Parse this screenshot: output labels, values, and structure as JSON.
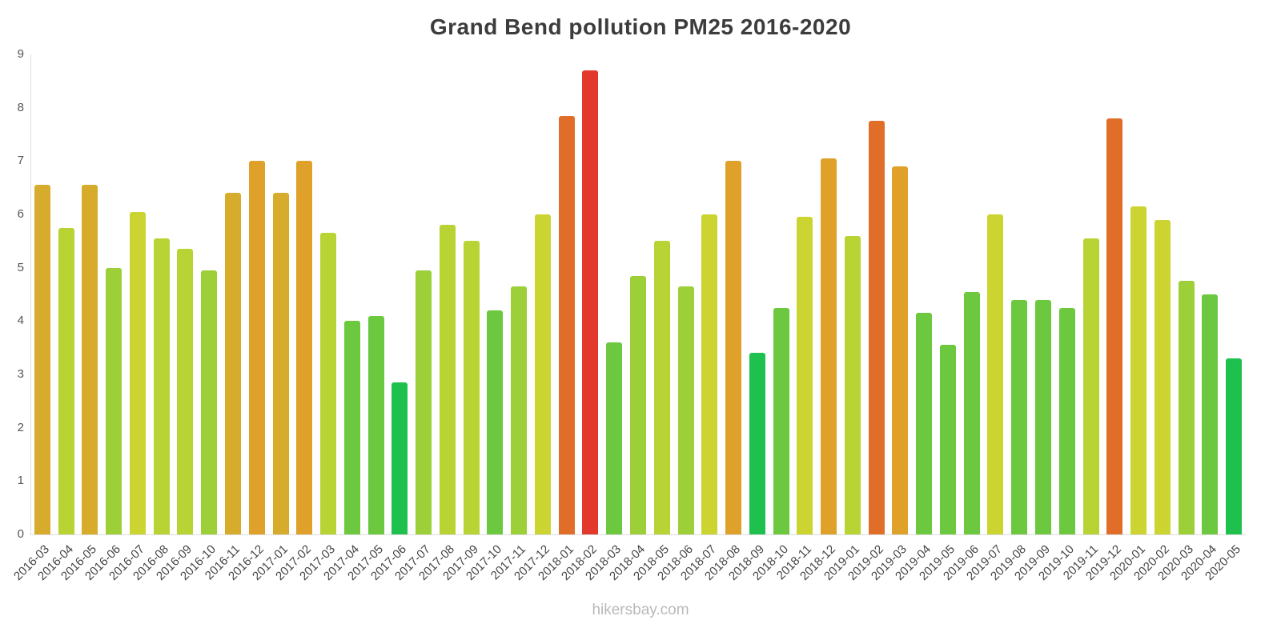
{
  "page": {
    "background": "#ffffff"
  },
  "footer": {
    "text": "hikersbay.com"
  },
  "chart_data": {
    "type": "bar",
    "title": "Grand Bend pollution PM25 2016-2020",
    "xlabel": "",
    "ylabel": "",
    "ylim": [
      0,
      9
    ],
    "yticks": [
      0,
      1,
      2,
      3,
      4,
      5,
      6,
      7,
      8,
      9
    ],
    "grid": false,
    "legend": false,
    "categories": [
      "2016-03",
      "2016-04",
      "2016-05",
      "2016-06",
      "2016-07",
      "2016-08",
      "2016-09",
      "2016-10",
      "2016-11",
      "2016-12",
      "2017-01",
      "2017-02",
      "2017-03",
      "2017-04",
      "2017-05",
      "2017-06",
      "2017-07",
      "2017-08",
      "2017-09",
      "2017-10",
      "2017-11",
      "2017-12",
      "2018-01",
      "2018-02",
      "2018-03",
      "2018-04",
      "2018-05",
      "2018-06",
      "2018-07",
      "2018-08",
      "2018-09",
      "2018-10",
      "2018-11",
      "2018-12",
      "2019-01",
      "2019-02",
      "2019-03",
      "2019-04",
      "2019-05",
      "2019-06",
      "2019-07",
      "2019-08",
      "2019-09",
      "2019-10",
      "2019-11",
      "2019-12",
      "2020-01",
      "2020-02",
      "2020-03",
      "2020-04",
      "2020-05"
    ],
    "values": [
      6.55,
      5.75,
      6.55,
      5.0,
      6.05,
      5.55,
      5.35,
      4.95,
      6.4,
      7.0,
      6.4,
      7.0,
      5.65,
      4.0,
      4.1,
      2.85,
      4.95,
      5.8,
      5.5,
      4.2,
      4.65,
      6.0,
      7.85,
      8.7,
      3.6,
      4.85,
      5.5,
      4.65,
      6.0,
      7.0,
      3.4,
      4.25,
      5.95,
      7.05,
      5.6,
      7.75,
      6.9,
      4.15,
      3.55,
      4.55,
      6.0,
      4.4,
      4.4,
      4.25,
      5.55,
      7.8,
      6.15,
      5.9,
      4.75,
      4.5,
      3.3
    ],
    "color_scale": [
      {
        "min": 8.4,
        "color": "#e2392c"
      },
      {
        "min": 7.3,
        "color": "#e06e28"
      },
      {
        "min": 6.6,
        "color": "#dfa12a"
      },
      {
        "min": 6.25,
        "color": "#d7ac2d"
      },
      {
        "min": 5.85,
        "color": "#cbd431"
      },
      {
        "min": 5.25,
        "color": "#b8d334"
      },
      {
        "min": 4.65,
        "color": "#9ccf38"
      },
      {
        "min": 3.45,
        "color": "#6cc83e"
      },
      {
        "min": 0,
        "color": "#1ec14d"
      }
    ]
  }
}
